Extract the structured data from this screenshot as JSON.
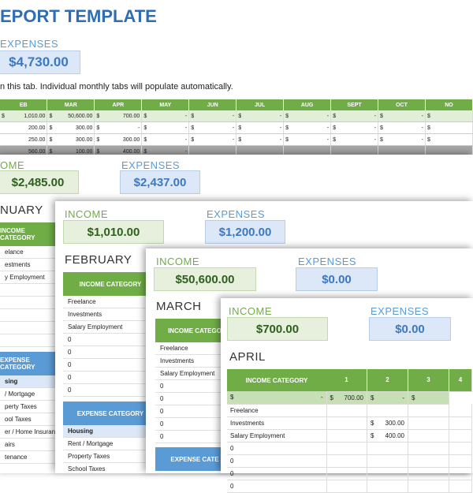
{
  "report": {
    "title": "EPORT TEMPLATE",
    "expenses_label": "EXPENSES",
    "expenses_value": "$4,730.00",
    "instruction": "n this tab.  Individual monthly tabs will populate automatically."
  },
  "months_table": {
    "headers": [
      "EB",
      "MAR",
      "APR",
      "MAY",
      "JUN",
      "JUL",
      "AUG",
      "SEPT",
      "OCT",
      "NO"
    ],
    "rows": [
      [
        "1,010.00",
        "50,600.00",
        "700.00",
        "-",
        "-",
        "-",
        "-",
        "-",
        "-",
        ""
      ],
      [
        "200.00",
        "300.00",
        "-",
        "-",
        "-",
        "-",
        "-",
        "-",
        "-",
        ""
      ],
      [
        "250.00",
        "300.00",
        "300.00",
        "-",
        "-",
        "-",
        "-",
        "-",
        "-",
        ""
      ],
      [
        "560.00",
        "100.00",
        "400.00",
        "-",
        "-",
        "-",
        "-",
        "-",
        "-",
        ""
      ]
    ],
    "currency": "$"
  },
  "jan": {
    "income_label": "OME",
    "income_value": "$2,485.00",
    "expenses_label": "EXPENSES",
    "expenses_value": "$2,437.00",
    "name": "NUARY",
    "income_cat": "INCOME CATEGORY",
    "income_rows": [
      "elance",
      "estments",
      "y Employment"
    ],
    "expense_cat": "EXPENSE CATEGORY",
    "expense_rows": [
      "sing",
      " / Mortgage",
      "perty Taxes",
      "ool Taxes",
      "er / Home Insurance",
      "airs",
      "tenance"
    ]
  },
  "feb": {
    "income_label": "INCOME",
    "income_value": "$1,010.00",
    "expenses_label": "EXPENSES",
    "expenses_value": "$1,200.00",
    "name": "FEBRUARY",
    "income_cat": "INCOME CATEGORY",
    "income_rows": [
      "Freelance",
      "Investments",
      "Salary Employment",
      "0",
      "0",
      "0",
      "0",
      "0"
    ],
    "expense_cat": "EXPENSE CATEGORY",
    "expense_rows": [
      "Housing",
      "Rent / Mortgage",
      "Property Taxes",
      "School Taxes"
    ]
  },
  "mar": {
    "income_label": "INCOME",
    "income_value": "$50,600.00",
    "expenses_label": "EXPENSES",
    "expenses_value": "$0.00",
    "name": "MARCH",
    "income_cat": "INCOME CATEGO",
    "income_rows": [
      "Freelance",
      "Investments",
      "Salary Employment",
      "0",
      "0",
      "0",
      "0",
      "0"
    ],
    "expense_cat": "EXPENSE CATE"
  },
  "apr": {
    "income_label": "INCOME",
    "income_value": "$700.00",
    "expenses_label": "EXPENSES",
    "expenses_value": "$0.00",
    "name": "APRIL",
    "income_cat": "INCOME CATEGORY",
    "col_headers": [
      "1",
      "2",
      "3",
      "4"
    ],
    "subrow": [
      "$",
      "-",
      "$",
      "700.00",
      "$",
      "-",
      "$"
    ],
    "rows": [
      {
        "label": "Freelance",
        "c2": ""
      },
      {
        "label": "Investments",
        "c2": "300.00"
      },
      {
        "label": "Salary Employment",
        "c2": "400.00"
      },
      {
        "label": "0",
        "c2": ""
      },
      {
        "label": "0",
        "c2": ""
      },
      {
        "label": "0",
        "c2": ""
      },
      {
        "label": "0",
        "c2": ""
      }
    ]
  }
}
